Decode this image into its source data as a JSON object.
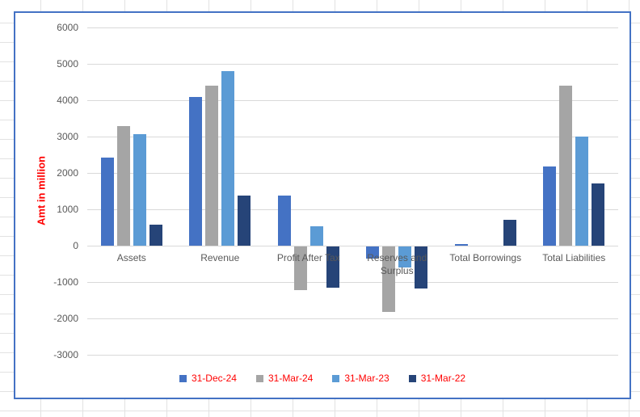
{
  "chart_data": {
    "type": "bar",
    "title": "",
    "ylabel": "Amt in million",
    "xlabel": "",
    "categories": [
      "Assets",
      "Revenue",
      "Profit After Tax",
      "Reserves and Surplus",
      "Total Borrowings",
      "Total Liabilities"
    ],
    "series": [
      {
        "name": "31-Dec-24",
        "color": "#4472C4",
        "values": [
          2430,
          4090,
          1370,
          -330,
          40,
          2180
        ]
      },
      {
        "name": "31-Mar-24",
        "color": "#A5A5A5",
        "values": [
          3280,
          4410,
          -1190,
          -1800,
          0,
          4410
        ]
      },
      {
        "name": "31-Mar-23",
        "color": "#5B9BD5",
        "values": [
          3060,
          4810,
          530,
          -580,
          0,
          3010
        ]
      },
      {
        "name": "31-Mar-22",
        "color": "#264478",
        "values": [
          570,
          1370,
          -1130,
          -1160,
          710,
          1720
        ]
      }
    ],
    "ylim": [
      -3000,
      6000
    ],
    "ytick_step": 1000,
    "yticks": [
      6000,
      5000,
      4000,
      3000,
      2000,
      1000,
      0,
      -1000,
      -2000,
      -3000
    ],
    "grid": true,
    "legend_position": "bottom",
    "colors": {
      "axis_text": "#595959",
      "gridline": "#D9D9D9",
      "legend_text": "#FF0000",
      "y_title_text": "#FF0000",
      "chart_border": "#4472C4",
      "chart_background": "#FFFFFF"
    }
  }
}
